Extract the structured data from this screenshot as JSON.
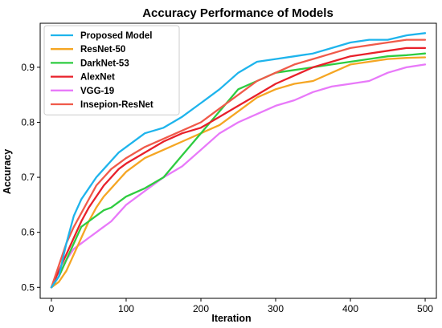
{
  "chart_data": {
    "type": "line",
    "title": "Accuracy Performance of Models",
    "xlabel": "Iteration",
    "ylabel": "Accuracy",
    "xlim": [
      -15,
      515
    ],
    "ylim": [
      0.48,
      0.98
    ],
    "xticks": [
      0,
      100,
      200,
      300,
      400,
      500
    ],
    "yticks": [
      0.5,
      0.6,
      0.7,
      0.8,
      0.9
    ],
    "ytick_labels": [
      "0.5",
      "0.6",
      "0.7",
      "0.8",
      "0.9"
    ],
    "grid": false,
    "legend_position": "top-left",
    "x": [
      0,
      10,
      20,
      30,
      40,
      50,
      60,
      70,
      80,
      90,
      100,
      125,
      150,
      175,
      200,
      225,
      250,
      275,
      300,
      325,
      350,
      375,
      400,
      425,
      450,
      475,
      500
    ],
    "series": [
      {
        "name": "Proposed Model",
        "color": "#1eb4ec",
        "values": [
          0.5,
          0.52,
          0.58,
          0.63,
          0.66,
          0.68,
          0.7,
          0.715,
          0.73,
          0.745,
          0.755,
          0.78,
          0.79,
          0.81,
          0.835,
          0.86,
          0.89,
          0.91,
          0.915,
          0.92,
          0.925,
          0.935,
          0.945,
          0.95,
          0.95,
          0.958,
          0.962
        ]
      },
      {
        "name": "ResNet-50",
        "color": "#f5a623",
        "values": [
          0.5,
          0.51,
          0.53,
          0.56,
          0.59,
          0.62,
          0.645,
          0.665,
          0.68,
          0.695,
          0.71,
          0.735,
          0.75,
          0.765,
          0.78,
          0.795,
          0.82,
          0.845,
          0.86,
          0.87,
          0.875,
          0.89,
          0.905,
          0.91,
          0.915,
          0.917,
          0.918
        ]
      },
      {
        "name": "DarkNet-53",
        "color": "#2ecc40",
        "values": [
          0.5,
          0.52,
          0.55,
          0.58,
          0.61,
          0.62,
          0.63,
          0.64,
          0.645,
          0.655,
          0.665,
          0.68,
          0.7,
          0.74,
          0.78,
          0.82,
          0.86,
          0.875,
          0.89,
          0.895,
          0.9,
          0.905,
          0.91,
          0.915,
          0.92,
          0.922,
          0.925
        ]
      },
      {
        "name": "AlexNet",
        "color": "#e8202a",
        "values": [
          0.5,
          0.53,
          0.56,
          0.59,
          0.62,
          0.645,
          0.665,
          0.685,
          0.7,
          0.715,
          0.725,
          0.745,
          0.765,
          0.78,
          0.79,
          0.81,
          0.83,
          0.85,
          0.87,
          0.885,
          0.9,
          0.91,
          0.92,
          0.925,
          0.93,
          0.935,
          0.935
        ]
      },
      {
        "name": "VGG-19",
        "color": "#e879f9",
        "values": [
          0.5,
          0.52,
          0.55,
          0.57,
          0.58,
          0.59,
          0.6,
          0.61,
          0.62,
          0.635,
          0.65,
          0.675,
          0.7,
          0.72,
          0.75,
          0.78,
          0.8,
          0.815,
          0.83,
          0.84,
          0.855,
          0.865,
          0.87,
          0.875,
          0.89,
          0.9,
          0.905
        ]
      },
      {
        "name": "Insepion-ResNet",
        "color": "#f05a4a",
        "values": [
          0.5,
          0.54,
          0.58,
          0.61,
          0.635,
          0.66,
          0.685,
          0.7,
          0.715,
          0.725,
          0.735,
          0.755,
          0.77,
          0.785,
          0.8,
          0.825,
          0.85,
          0.875,
          0.89,
          0.905,
          0.915,
          0.925,
          0.935,
          0.94,
          0.945,
          0.95,
          0.95
        ]
      }
    ]
  }
}
